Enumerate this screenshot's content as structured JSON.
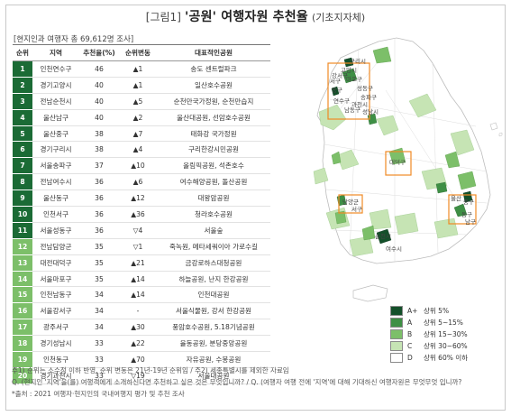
{
  "header": {
    "label": "[그림1]",
    "title": "'공원' 여행자원 추천율",
    "subtitle": "(기초지자체)"
  },
  "survey_note": "[현지인과 여행자 총 69,612명 조사]",
  "colors": {
    "rank_top": "#1b6b35",
    "rank_mid": "#7cbf69",
    "grade_a_plus": "#14502a",
    "grade_a": "#3e8f45",
    "grade_b": "#7cbf69",
    "grade_c": "#c6e4b4",
    "grade_d": "#ffffff",
    "map_orange_outline": "#f08a24"
  },
  "chart_data": {
    "type": "table",
    "columns": [
      "순위",
      "지역",
      "추천율(%)",
      "순위변동",
      "대표적인공원"
    ],
    "rows": [
      {
        "rank": "1",
        "region": "인천연수구",
        "rate": "46",
        "change": "▲1",
        "park": "송도 센트럴파크"
      },
      {
        "rank": "2",
        "region": "경기고양시",
        "rate": "40",
        "change": "▲1",
        "park": "일산호수공원"
      },
      {
        "rank": "3",
        "region": "전남순천시",
        "rate": "40",
        "change": "▲5",
        "park": "순천만국가정원, 순천만습지"
      },
      {
        "rank": "4",
        "region": "울산남구",
        "rate": "40",
        "change": "▲2",
        "park": "울산대공원, 선암호수공원"
      },
      {
        "rank": "5",
        "region": "울산중구",
        "rate": "38",
        "change": "▲7",
        "park": "태화강 국가정원"
      },
      {
        "rank": "6",
        "region": "경기구리시",
        "rate": "38",
        "change": "▲4",
        "park": "구리한강시민공원"
      },
      {
        "rank": "7",
        "region": "서울송파구",
        "rate": "37",
        "change": "▲10",
        "park": "올림픽공원, 석촌호수"
      },
      {
        "rank": "8",
        "region": "전남여수시",
        "rate": "36",
        "change": "▲6",
        "park": "여수해양공원, 돌산공원"
      },
      {
        "rank": "9",
        "region": "울산동구",
        "rate": "36",
        "change": "▲12",
        "park": "대왕암공원"
      },
      {
        "rank": "10",
        "region": "인천서구",
        "rate": "36",
        "change": "▲36",
        "park": "청라호수공원"
      },
      {
        "rank": "11",
        "region": "서울성동구",
        "rate": "36",
        "change": "▽4",
        "park": "서울숲"
      },
      {
        "rank": "12",
        "region": "전남담양군",
        "rate": "35",
        "change": "▽1",
        "park": "죽녹원, 메타세쿼이아 가로수길"
      },
      {
        "rank": "13",
        "region": "대전대덕구",
        "rate": "35",
        "change": "▲21",
        "park": "금강로하스대청공원"
      },
      {
        "rank": "14",
        "region": "서울마포구",
        "rate": "35",
        "change": "▲14",
        "park": "하늘공원, 난지 한강공원"
      },
      {
        "rank": "15",
        "region": "인천남동구",
        "rate": "34",
        "change": "▲14",
        "park": "인천대공원"
      },
      {
        "rank": "16",
        "region": "서울강서구",
        "rate": "34",
        "change": "-",
        "park": "서울식물원, 강서 한강공원"
      },
      {
        "rank": "17",
        "region": "광주서구",
        "rate": "34",
        "change": "▲30",
        "park": "풍암호수공원, 5.18기념공원"
      },
      {
        "rank": "18",
        "region": "경기성남시",
        "rate": "33",
        "change": "▲22",
        "park": "율동공원, 분당중앙공원"
      },
      {
        "rank": "19",
        "region": "인천동구",
        "rate": "33",
        "change": "▲70",
        "park": "자유공원, 수봉공원"
      },
      {
        "rank": "20",
        "region": "경기과천시",
        "rate": "33",
        "change": "▽19",
        "park": "서울대공원"
      }
    ]
  },
  "legend": {
    "items": [
      {
        "grade": "A+",
        "label": "상위 5%"
      },
      {
        "grade": "A",
        "label": "상위 5~15%"
      },
      {
        "grade": "B",
        "label": "상위 15~30%"
      },
      {
        "grade": "C",
        "label": "상위 30~60%"
      },
      {
        "grade": "D",
        "label": "상위 60% 이하"
      }
    ]
  },
  "map": {
    "labels": [
      "구리시",
      "고양시",
      "서구",
      "동구",
      "연수구",
      "남동구",
      "마포구",
      "강서구",
      "송파구",
      "과천시",
      "성동구",
      "성남시",
      "대덕구",
      "담양군",
      "서구",
      "순천시",
      "여수시",
      "울산",
      "중구",
      "동구",
      "남구"
    ]
  },
  "footnotes": [
    "주1) 순위는 소수점 이하 반영, 순위 변동은 21년-19년 순위임  /  주2) 세종특별시를 제외한 자료임",
    "Q. (현지인 '지역'을(를) 여행객에게 소개하신다면 추천하고 싶은 것은 무엇입니까? / Q. (여행자 여행 전에 '지역'에 대해 기대하신 여행자원은 무엇무엇 입니까?",
    "*출처 : 2021 여행자·현지인의 국내여행지 평가 및 추천 조사"
  ]
}
